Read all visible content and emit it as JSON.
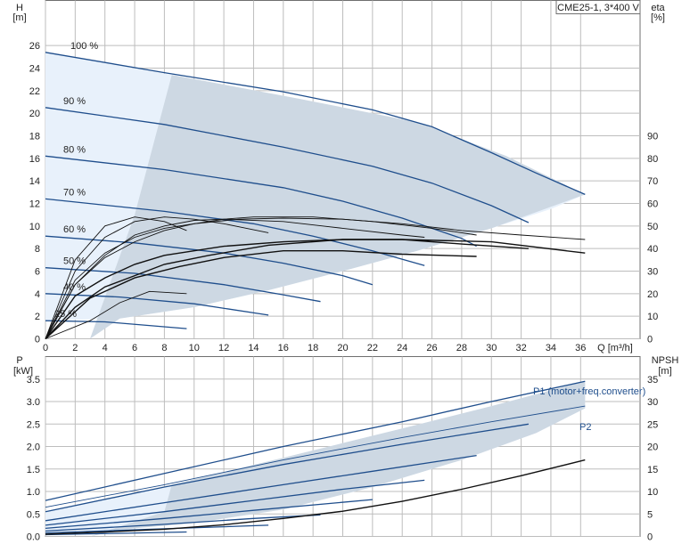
{
  "chart_data": [
    {
      "type": "line",
      "title": "CME25-1, 3*400 V",
      "x_axis": {
        "label": "Q [m³/h]",
        "range": [
          0,
          40
        ],
        "ticks": [
          0,
          2,
          4,
          6,
          8,
          10,
          12,
          14,
          16,
          18,
          20,
          22,
          24,
          26,
          28,
          30,
          32,
          34,
          36
        ]
      },
      "y_left": {
        "label": "H",
        "unit": "[m]",
        "range": [
          0,
          30
        ],
        "ticks": [
          0,
          2,
          4,
          6,
          8,
          10,
          12,
          14,
          16,
          18,
          20,
          22,
          24,
          26
        ]
      },
      "y_right": {
        "label": "eta",
        "unit": "[%]",
        "range": [
          0,
          150
        ],
        "ticks": [
          0,
          10,
          20,
          30,
          40,
          50,
          60,
          70,
          80,
          90
        ]
      },
      "operating_area": [
        [
          0,
          25.4
        ],
        [
          8.5,
          23.4
        ],
        [
          17,
          21.3
        ],
        [
          25,
          19.2
        ],
        [
          31,
          16.2
        ],
        [
          36.3,
          12.8
        ],
        [
          34,
          11.5
        ],
        [
          30,
          9.8
        ],
        [
          25,
          7.8
        ],
        [
          20,
          6.0
        ],
        [
          15,
          4.3
        ],
        [
          10,
          2.8
        ],
        [
          5,
          1.8
        ],
        [
          0,
          1.6
        ]
      ],
      "speed_curves": [
        {
          "name": "100 %",
          "points": [
            [
              0,
              25.4
            ],
            [
              8,
              23.6
            ],
            [
              16,
              21.9
            ],
            [
              22,
              20.3
            ],
            [
              26,
              18.8
            ],
            [
              30,
              16.5
            ],
            [
              33,
              14.7
            ],
            [
              36.3,
              12.8
            ]
          ]
        },
        {
          "name": "90 %",
          "points": [
            [
              0,
              20.5
            ],
            [
              8,
              19.0
            ],
            [
              16,
              17.0
            ],
            [
              22,
              15.3
            ],
            [
              26,
              13.8
            ],
            [
              30,
              11.8
            ],
            [
              32.5,
              10.3
            ]
          ]
        },
        {
          "name": "80 %",
          "points": [
            [
              0,
              16.2
            ],
            [
              8,
              15.0
            ],
            [
              16,
              13.4
            ],
            [
              20,
              12.2
            ],
            [
              24,
              10.7
            ],
            [
              28,
              8.9
            ],
            [
              29,
              8.2
            ]
          ]
        },
        {
          "name": "70 %",
          "points": [
            [
              0,
              12.4
            ],
            [
              8,
              11.3
            ],
            [
              14,
              10.2
            ],
            [
              18,
              9.1
            ],
            [
              22,
              7.8
            ],
            [
              25.5,
              6.5
            ]
          ]
        },
        {
          "name": "60 %",
          "points": [
            [
              0,
              9.1
            ],
            [
              6,
              8.5
            ],
            [
              12,
              7.6
            ],
            [
              16,
              6.7
            ],
            [
              20,
              5.6
            ],
            [
              22,
              4.8
            ]
          ]
        },
        {
          "name": "50 %",
          "points": [
            [
              0,
              6.3
            ],
            [
              6,
              5.8
            ],
            [
              12,
              4.8
            ],
            [
              16,
              3.9
            ],
            [
              18.5,
              3.3
            ]
          ]
        },
        {
          "name": "40 %",
          "points": [
            [
              0,
              4.0
            ],
            [
              5,
              3.7
            ],
            [
              10,
              3.1
            ],
            [
              15,
              2.1
            ]
          ]
        },
        {
          "name": "25 %",
          "points": [
            [
              0,
              1.6
            ],
            [
              4,
              1.5
            ],
            [
              9.5,
              0.9
            ]
          ]
        }
      ],
      "efficiency_curves": [
        {
          "points": [
            [
              0,
              0
            ],
            [
              2,
              19
            ],
            [
              4,
              27
            ],
            [
              6,
              33
            ],
            [
              8,
              37
            ],
            [
              12,
              41
            ],
            [
              16,
              43
            ],
            [
              20,
              44
            ],
            [
              24,
              44
            ],
            [
              30,
              43
            ],
            [
              36.3,
              38
            ]
          ]
        },
        {
          "points": [
            [
              0,
              0
            ],
            [
              2,
              14
            ],
            [
              4,
              23
            ],
            [
              6,
              28
            ],
            [
              8,
              33
            ],
            [
              11,
              37
            ],
            [
              15,
              41.5
            ],
            [
              20,
              44
            ],
            [
              24,
              44
            ],
            [
              28,
              42
            ],
            [
              32.5,
              40
            ]
          ]
        },
        {
          "points": [
            [
              0,
              0
            ],
            [
              3,
              18
            ],
            [
              6,
              27
            ],
            [
              9,
              32
            ],
            [
              12,
              36
            ],
            [
              16,
              39
            ],
            [
              20,
              39
            ],
            [
              24,
              37.5
            ],
            [
              29,
              36.5
            ]
          ]
        },
        {
          "points": [
            [
              0,
              0
            ],
            [
              2,
              24
            ],
            [
              4,
              36
            ],
            [
              6,
              43
            ],
            [
              8,
              48
            ],
            [
              10,
              51
            ],
            [
              12,
              53
            ],
            [
              14,
              54
            ],
            [
              18,
              54
            ],
            [
              22,
              52
            ],
            [
              26,
              49
            ],
            [
              29,
              46
            ]
          ]
        },
        {
          "points": [
            [
              0,
              0
            ],
            [
              2,
              26
            ],
            [
              4,
              38
            ],
            [
              6,
              45
            ],
            [
              8,
              49
            ],
            [
              10,
              51
            ],
            [
              13,
              53
            ],
            [
              16,
              53.5
            ],
            [
              20,
              53
            ],
            [
              24,
              51
            ],
            [
              28,
              48
            ],
            [
              32,
              46
            ],
            [
              36.3,
              44
            ]
          ]
        },
        {
          "points": [
            [
              0,
              0
            ],
            [
              2,
              24
            ],
            [
              4,
              37
            ],
            [
              6,
              46
            ],
            [
              8,
              50
            ],
            [
              10,
              52.5
            ],
            [
              12,
              53
            ],
            [
              16,
              52
            ],
            [
              20,
              49
            ],
            [
              24,
              46
            ],
            [
              25.5,
              45
            ]
          ]
        },
        {
          "points": [
            [
              0,
              0
            ],
            [
              2,
              30
            ],
            [
              4,
              45
            ],
            [
              6,
              52
            ],
            [
              8,
              54
            ],
            [
              10,
              53
            ],
            [
              12,
              51
            ],
            [
              15,
              47
            ]
          ]
        },
        {
          "points": [
            [
              0,
              0
            ],
            [
              2,
              35
            ],
            [
              4,
              50
            ],
            [
              6,
              54
            ],
            [
              8,
              52
            ],
            [
              9.5,
              48
            ]
          ]
        },
        {
          "points": [
            [
              0,
              0
            ],
            [
              3,
              8
            ],
            [
              5,
              16
            ],
            [
              7,
              21
            ],
            [
              9.5,
              20
            ]
          ]
        }
      ]
    },
    {
      "type": "line",
      "x_axis": {
        "range": [
          0,
          40
        ]
      },
      "y_left": {
        "label": "P",
        "unit": "[kW]",
        "range": [
          0,
          4.0
        ],
        "ticks": [
          0,
          0.5,
          1.0,
          1.5,
          2.0,
          2.5,
          3.0,
          3.5
        ]
      },
      "y_right": {
        "label": "NPSH",
        "unit": "[m]",
        "range": [
          0,
          40
        ],
        "ticks": [
          0,
          5,
          10,
          15,
          20,
          25,
          30,
          35
        ]
      },
      "operating_area": [
        [
          0,
          0.55
        ],
        [
          8,
          1.1
        ],
        [
          16,
          1.75
        ],
        [
          24,
          2.4
        ],
        [
          30,
          2.9
        ],
        [
          36.3,
          3.45
        ],
        [
          36.3,
          2.85
        ],
        [
          33,
          2.3
        ],
        [
          28,
          1.7
        ],
        [
          22,
          1.1
        ],
        [
          16,
          0.6
        ],
        [
          10,
          0.3
        ],
        [
          5,
          0.15
        ],
        [
          0,
          0.1
        ]
      ],
      "labels": {
        "p1": "P1 (motor+freq.converter)",
        "p2": "P2"
      },
      "p1_curves": [
        {
          "points": [
            [
              0,
              0.8
            ],
            [
              8,
              1.4
            ],
            [
              16,
              2.0
            ],
            [
              24,
              2.55
            ],
            [
              30,
              3.0
            ],
            [
              36.3,
              3.45
            ]
          ]
        },
        {
          "points": [
            [
              0,
              0.55
            ],
            [
              8,
              1.1
            ],
            [
              16,
              1.6
            ],
            [
              24,
              2.05
            ],
            [
              32.5,
              2.5
            ]
          ]
        },
        {
          "points": [
            [
              0,
              0.35
            ],
            [
              8,
              0.75
            ],
            [
              16,
              1.15
            ],
            [
              22,
              1.45
            ],
            [
              29,
              1.8
            ]
          ]
        },
        {
          "points": [
            [
              0,
              0.25
            ],
            [
              8,
              0.55
            ],
            [
              14,
              0.8
            ],
            [
              20,
              1.05
            ],
            [
              25.5,
              1.25
            ]
          ]
        },
        {
          "points": [
            [
              0,
              0.18
            ],
            [
              8,
              0.4
            ],
            [
              14,
              0.58
            ],
            [
              22,
              0.82
            ]
          ]
        },
        {
          "points": [
            [
              0,
              0.12
            ],
            [
              8,
              0.27
            ],
            [
              14,
              0.4
            ],
            [
              18.5,
              0.48
            ]
          ]
        },
        {
          "points": [
            [
              0,
              0.08
            ],
            [
              8,
              0.17
            ],
            [
              15,
              0.25
            ]
          ]
        },
        {
          "points": [
            [
              0,
              0.04
            ],
            [
              5,
              0.07
            ],
            [
              9.5,
              0.1
            ]
          ]
        }
      ],
      "p2_curves": [
        {
          "points": [
            [
              0,
              0.65
            ],
            [
              8,
              1.15
            ],
            [
              16,
              1.7
            ],
            [
              24,
              2.2
            ],
            [
              30,
              2.55
            ],
            [
              36.3,
              2.9
            ]
          ]
        }
      ],
      "npsh_curve": {
        "points": [
          [
            0,
            0.5
          ],
          [
            4,
            1.0
          ],
          [
            8,
            1.6
          ],
          [
            12,
            2.6
          ],
          [
            16,
            4.0
          ],
          [
            20,
            5.6
          ],
          [
            24,
            7.8
          ],
          [
            28,
            10.5
          ],
          [
            32,
            13.5
          ],
          [
            36.3,
            17
          ]
        ]
      }
    }
  ]
}
